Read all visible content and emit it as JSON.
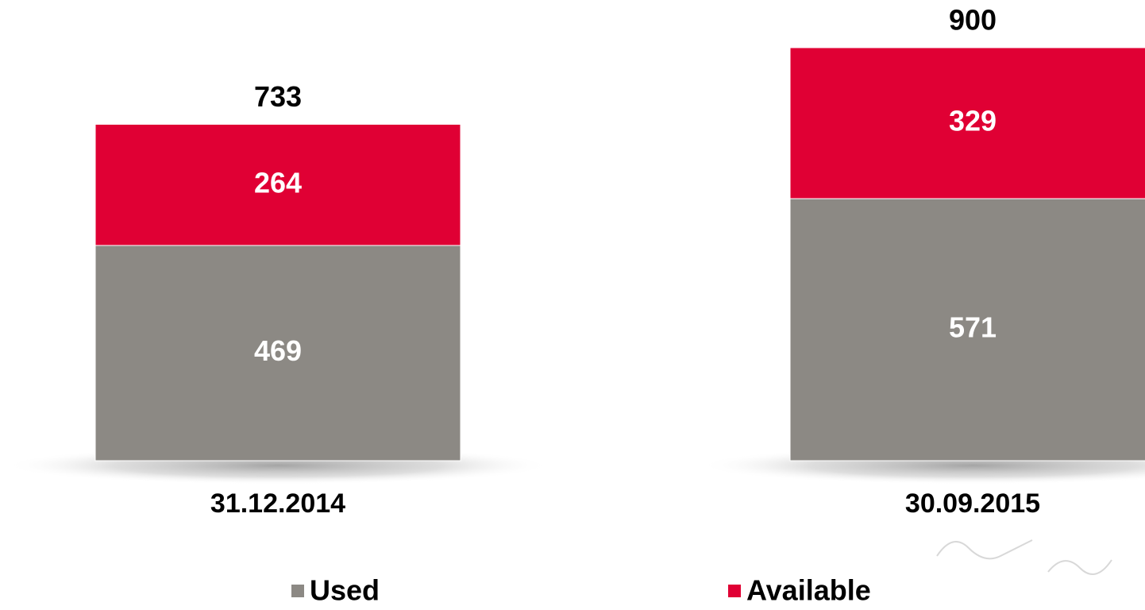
{
  "chart_data": {
    "type": "stacked_bar",
    "categories": [
      "31.12.2014",
      "30.09.2015"
    ],
    "series": [
      {
        "name": "Used",
        "color": "#8c8984",
        "values": [
          469,
          571
        ]
      },
      {
        "name": "Available",
        "color": "#e00034",
        "values": [
          264,
          329
        ]
      }
    ],
    "totals": [
      733,
      900
    ],
    "legend": "bottom"
  }
}
